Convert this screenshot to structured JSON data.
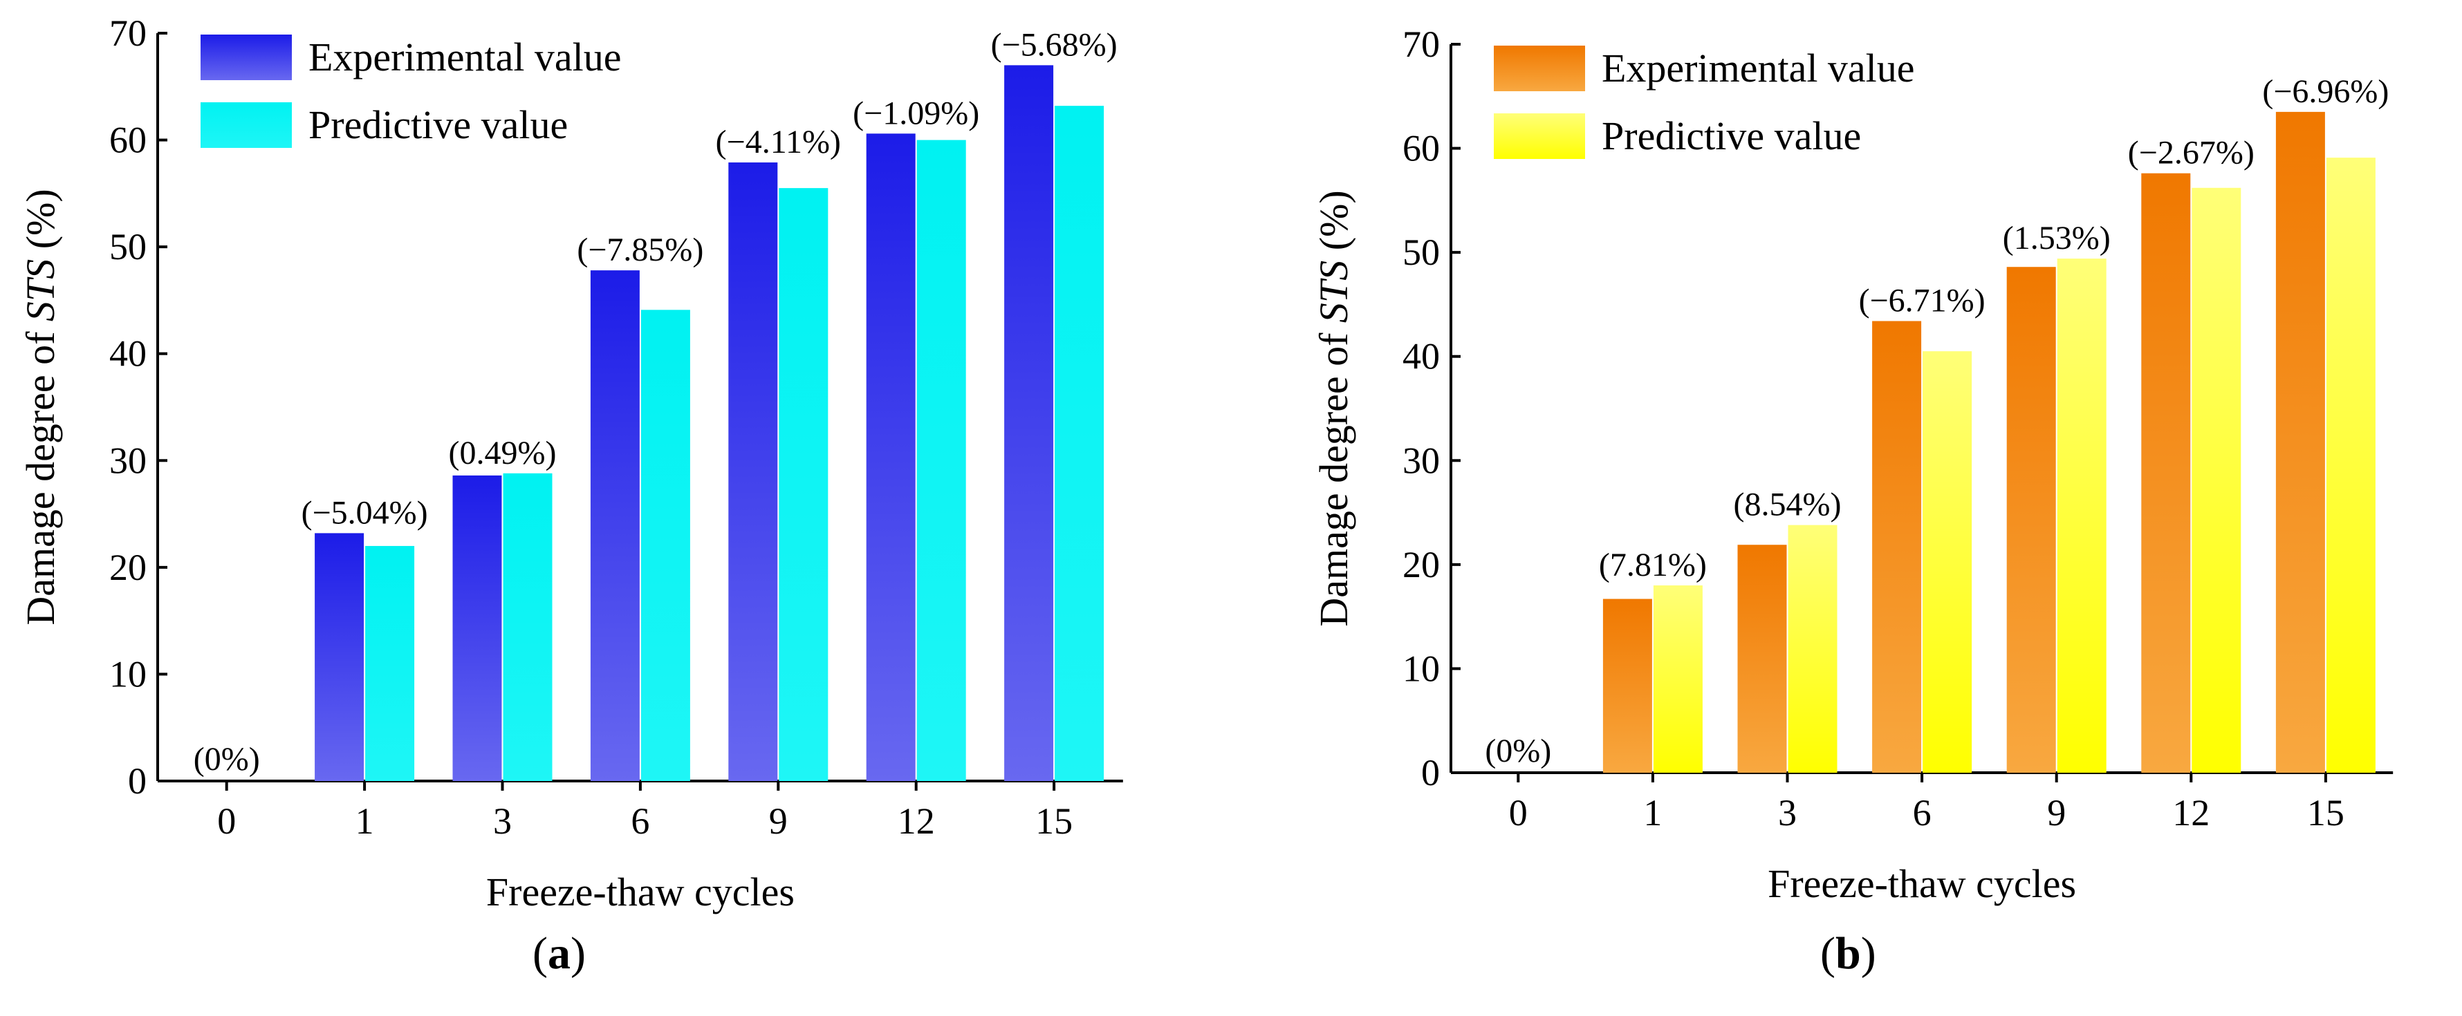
{
  "chart_data": [
    {
      "type": "bar",
      "categories": [
        "0",
        "1",
        "3",
        "6",
        "9",
        "12",
        "15"
      ],
      "series": [
        {
          "name": "Experimental value",
          "values": [
            0,
            23.2,
            28.6,
            47.8,
            57.9,
            60.6,
            67.0
          ]
        },
        {
          "name": "Predictive value",
          "values": [
            0,
            22.0,
            28.8,
            44.1,
            55.5,
            60.0,
            63.2
          ]
        }
      ],
      "annotations": [
        "(0%)",
        "(−5.04%)",
        "(0.49%)",
        "(−7.85%)",
        "(−4.11%)",
        "(−1.09%)",
        "(−5.68%)"
      ],
      "xlabel": "Freeze-thaw cycles",
      "ylabel_prefix": "Damage degree of ",
      "ylabel_italic": "STS",
      "ylabel_suffix": " (%)",
      "ylim": [
        0,
        70
      ],
      "yticks": [
        0,
        10,
        20,
        30,
        40,
        50,
        60,
        70
      ],
      "grid": false,
      "legend_position": "top-left",
      "colors": {
        "experimental_top": "#1c1ce8",
        "experimental_bottom": "#6868f0",
        "predictive_top": "#00f2f2",
        "predictive_bottom": "#1ef6f6"
      },
      "panel_label": {
        "open": "(",
        "letter": "a",
        "close": ")"
      }
    },
    {
      "type": "bar",
      "categories": [
        "0",
        "1",
        "3",
        "6",
        "9",
        "12",
        "15"
      ],
      "series": [
        {
          "name": "Experimental value",
          "values": [
            0,
            16.7,
            21.9,
            43.4,
            48.6,
            57.6,
            63.5
          ]
        },
        {
          "name": "Predictive value",
          "values": [
            0,
            18.0,
            23.8,
            40.5,
            49.4,
            56.2,
            59.1
          ]
        }
      ],
      "annotations": [
        "(0%)",
        "(7.81%)",
        "(8.54%)",
        "(−6.71%)",
        "(1.53%)",
        "(−2.67%)",
        "(−6.96%)"
      ],
      "xlabel": "Freeze-thaw cycles",
      "ylabel_prefix": "Damage degree of ",
      "ylabel_italic": "STS",
      "ylabel_suffix": " (%)",
      "ylim": [
        0,
        70
      ],
      "yticks": [
        0,
        10,
        20,
        30,
        40,
        50,
        60,
        70
      ],
      "grid": false,
      "legend_position": "top-left",
      "colors": {
        "experimental_top": "#f07800",
        "experimental_bottom": "#f8a840",
        "predictive_top": "#ffff78",
        "predictive_bottom": "#ffff00"
      },
      "panel_label": {
        "open": "(",
        "letter": "b",
        "close": ")"
      }
    }
  ]
}
